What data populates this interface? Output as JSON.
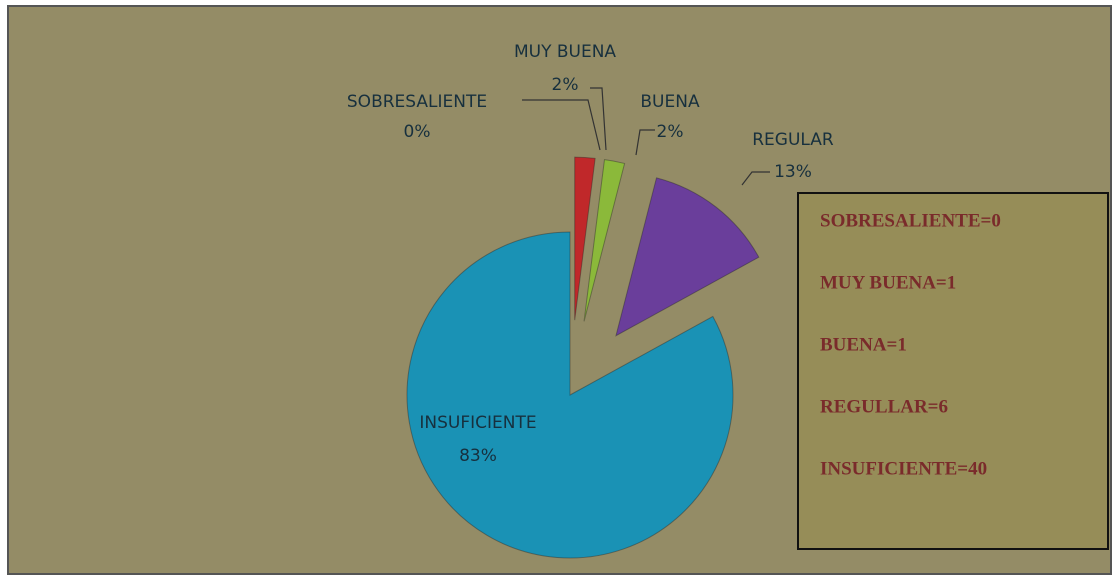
{
  "chart_data": {
    "type": "pie",
    "categories": [
      "SOBRESALIENTE",
      "MUY BUENA",
      "BUENA",
      "REGULAR",
      "INSUFICIENTE"
    ],
    "values": [
      0,
      2,
      2,
      13,
      83
    ],
    "value_labels": [
      "0%",
      "2%",
      "2%",
      "13%",
      "83%"
    ],
    "colors": [
      "#2b5f9e",
      "#c0282a",
      "#8bb93a",
      "#6a3e9b",
      "#1a92b5"
    ],
    "annotations": [
      "SOBRESALIENTE=0",
      "MUY BUENA=1",
      "BUENA=1",
      "REGULLAR=6",
      "INSUFICIENTE=40"
    ]
  }
}
